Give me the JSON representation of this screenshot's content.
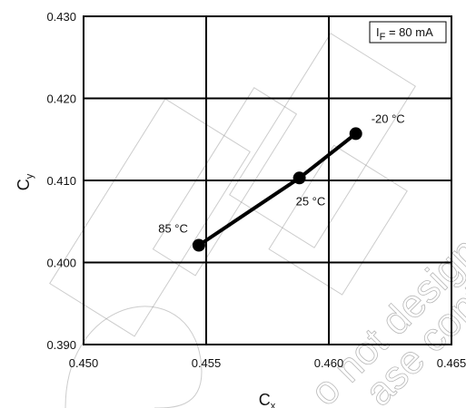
{
  "chart_data": {
    "type": "line",
    "title": "",
    "xlabel": "C",
    "xlabel_sub": "x",
    "ylabel": "C",
    "ylabel_sub": "y",
    "xlim": [
      0.45,
      0.465
    ],
    "ylim": [
      0.39,
      0.43
    ],
    "x_ticks": [
      "0.450",
      "0.455",
      "0.460",
      "0.465"
    ],
    "y_ticks": [
      "0.390",
      "0.400",
      "0.410",
      "0.420",
      "0.430"
    ],
    "grid": true,
    "series": [
      {
        "points": [
          {
            "x": 0.4547,
            "y": 0.4021,
            "label": "85 °C"
          },
          {
            "x": 0.4588,
            "y": 0.4103,
            "label": "25 °C"
          },
          {
            "x": 0.4611,
            "y": 0.4157,
            "label": "-20 °C"
          }
        ],
        "color": "#000000"
      }
    ],
    "annotations": [
      {
        "base": "I",
        "sub": "F",
        "rest": " = 80 mA",
        "placement": "top-right"
      }
    ]
  }
}
